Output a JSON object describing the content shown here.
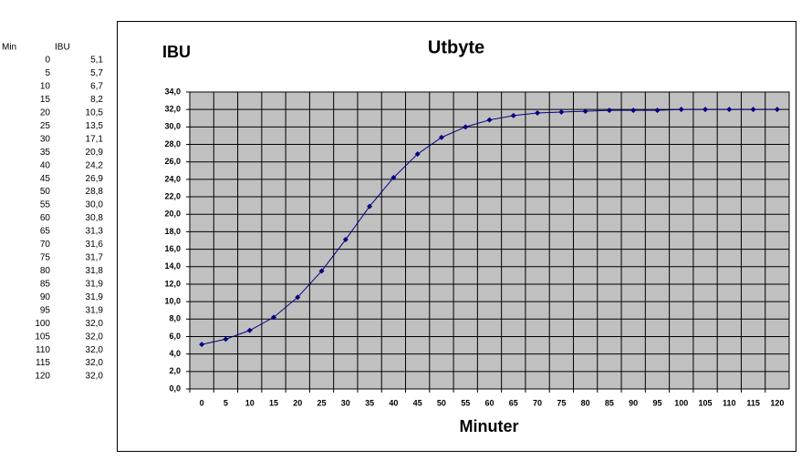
{
  "table": {
    "header": [
      "Min",
      "IBU"
    ],
    "rows": [
      [
        "0",
        "5,1"
      ],
      [
        "5",
        "5,7"
      ],
      [
        "10",
        "6,7"
      ],
      [
        "15",
        "8,2"
      ],
      [
        "20",
        "10,5"
      ],
      [
        "25",
        "13,5"
      ],
      [
        "30",
        "17,1"
      ],
      [
        "35",
        "20,9"
      ],
      [
        "40",
        "24,2"
      ],
      [
        "45",
        "26,9"
      ],
      [
        "50",
        "28,8"
      ],
      [
        "55",
        "30,0"
      ],
      [
        "60",
        "30,8"
      ],
      [
        "65",
        "31,3"
      ],
      [
        "70",
        "31,6"
      ],
      [
        "75",
        "31,7"
      ],
      [
        "80",
        "31,8"
      ],
      [
        "85",
        "31,9"
      ],
      [
        "90",
        "31,9"
      ],
      [
        "95",
        "31,9"
      ],
      [
        "100",
        "32,0"
      ],
      [
        "105",
        "32,0"
      ],
      [
        "110",
        "32,0"
      ],
      [
        "115",
        "32,0"
      ],
      [
        "120",
        "32,0"
      ]
    ]
  },
  "chart_data": {
    "type": "line",
    "title": "Utbyte",
    "y_label": "IBU",
    "x_label": "Minuter",
    "categories": [
      "0",
      "5",
      "10",
      "15",
      "20",
      "25",
      "30",
      "35",
      "40",
      "45",
      "50",
      "55",
      "60",
      "65",
      "70",
      "75",
      "80",
      "85",
      "90",
      "95",
      "100",
      "105",
      "110",
      "115",
      "120"
    ],
    "values": [
      5.1,
      5.7,
      6.7,
      8.2,
      10.5,
      13.5,
      17.1,
      20.9,
      24.2,
      26.9,
      28.8,
      30.0,
      30.8,
      31.3,
      31.6,
      31.7,
      31.8,
      31.9,
      31.9,
      31.9,
      32.0,
      32.0,
      32.0,
      32.0,
      32.0
    ],
    "color": "#000080",
    "plot_background": "#c0c0c0",
    "grid": true,
    "ylim": [
      0,
      34
    ],
    "yticks": [
      {
        "value": 0,
        "label": "0,0"
      },
      {
        "value": 2,
        "label": "2,0"
      },
      {
        "value": 4,
        "label": "4,0"
      },
      {
        "value": 6,
        "label": "6,0"
      },
      {
        "value": 8,
        "label": "8,0"
      },
      {
        "value": 10,
        "label": "10,0"
      },
      {
        "value": 12,
        "label": "12,0"
      },
      {
        "value": 14,
        "label": "14,0"
      },
      {
        "value": 16,
        "label": "16,0"
      },
      {
        "value": 18,
        "label": "18,0"
      },
      {
        "value": 20,
        "label": "20,0"
      },
      {
        "value": 22,
        "label": "22,0"
      },
      {
        "value": 24,
        "label": "24,0"
      },
      {
        "value": 26,
        "label": "26,0"
      },
      {
        "value": 28,
        "label": "28,0"
      },
      {
        "value": 30,
        "label": "30,0"
      },
      {
        "value": 32,
        "label": "32,0"
      },
      {
        "value": 34,
        "label": "34,0"
      }
    ]
  }
}
